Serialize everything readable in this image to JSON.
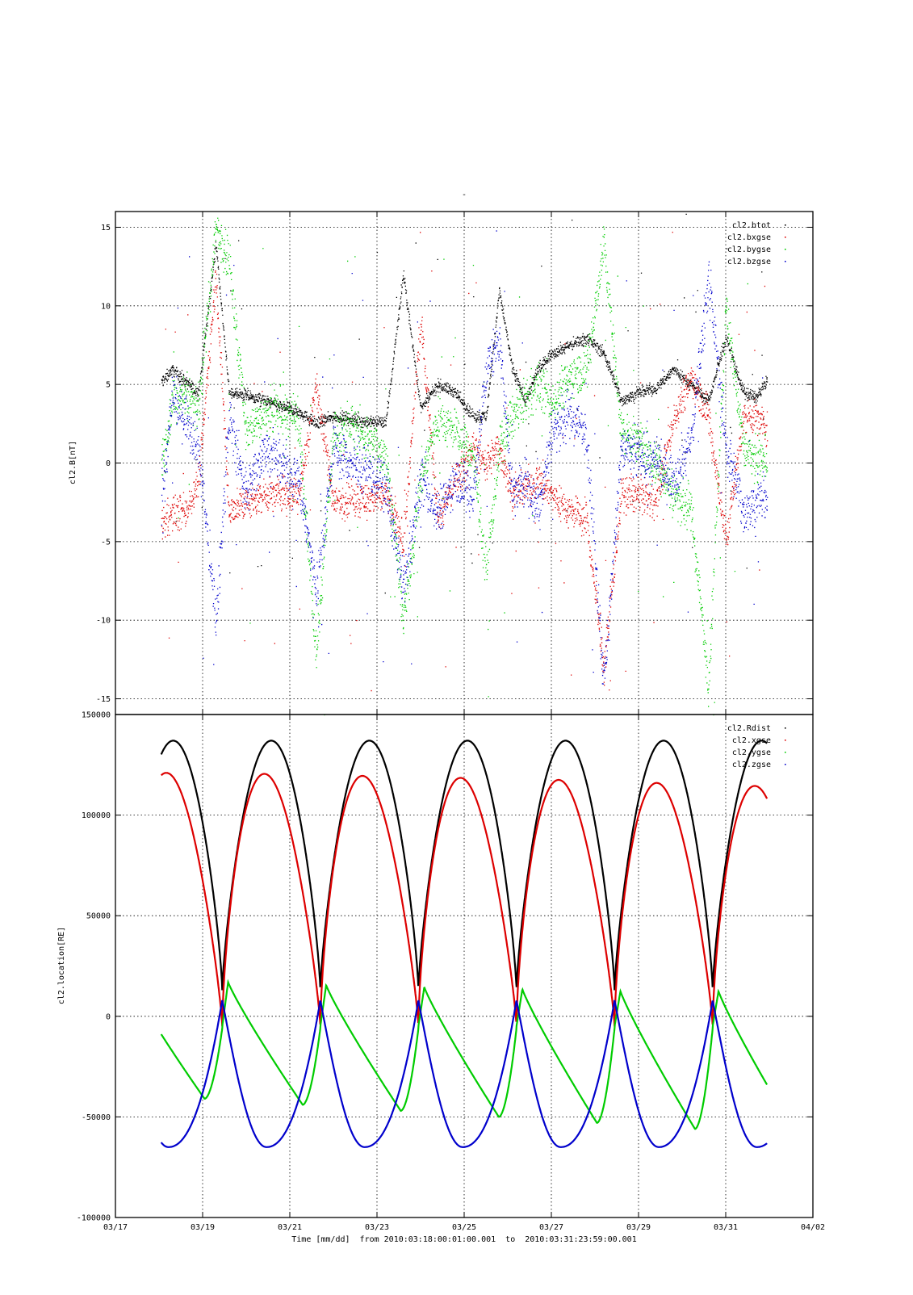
{
  "chart_data": [
    {
      "type": "scatter",
      "title": "-",
      "xlabel": "",
      "ylabel": "cl2.B[nT]",
      "ylim": [
        -16,
        16
      ],
      "yticks": [
        -15,
        -10,
        -5,
        0,
        5,
        10,
        15
      ],
      "xlim": [
        "03/17",
        "04/02"
      ],
      "grid": true,
      "legend_position": "top-right",
      "series": [
        {
          "name": "cl2.btot",
          "color": "#000000",
          "x_days": [
            18.0,
            18.3,
            18.6,
            18.9,
            19.3,
            19.6,
            20.0,
            20.4,
            20.8,
            21.2,
            21.6,
            22.0,
            22.4,
            22.8,
            23.2,
            23.6,
            24.0,
            24.4,
            24.8,
            25.2,
            25.5,
            25.8,
            26.1,
            26.4,
            26.7,
            27.0,
            27.4,
            27.8,
            28.2,
            28.6,
            29.0,
            29.4,
            29.8,
            30.2,
            30.6,
            31.0,
            31.4,
            31.7,
            32.0
          ],
          "values": [
            5.0,
            6.0,
            5.2,
            4.5,
            14.0,
            4.5,
            4.3,
            4.0,
            3.6,
            3.3,
            2.5,
            3.0,
            2.8,
            2.6,
            2.7,
            12.0,
            3.5,
            5.0,
            4.5,
            3.0,
            3.0,
            11.0,
            6.0,
            4.0,
            6.0,
            7.0,
            7.5,
            8.0,
            7.0,
            4.0,
            4.5,
            4.8,
            6.0,
            5.0,
            4.0,
            8.0,
            4.5,
            4.2,
            5.5
          ]
        },
        {
          "name": "cl2.bxgse",
          "color": "#dd0000",
          "x_days": [
            18.0,
            18.3,
            18.6,
            18.9,
            19.3,
            19.6,
            20.0,
            20.4,
            20.8,
            21.2,
            21.6,
            22.0,
            22.4,
            22.8,
            23.2,
            23.6,
            24.0,
            24.4,
            24.8,
            25.2,
            25.5,
            25.8,
            26.1,
            26.4,
            26.7,
            27.0,
            27.4,
            27.8,
            28.2,
            28.6,
            29.0,
            29.4,
            29.8,
            30.2,
            30.6,
            31.0,
            31.4,
            31.7,
            32.0
          ],
          "values": [
            -4.0,
            -3.2,
            -3.0,
            -1.0,
            12.0,
            -3.0,
            -2.5,
            -2.0,
            -1.8,
            -2.0,
            5.0,
            -2.5,
            -2.2,
            -2.3,
            -2.0,
            -5.0,
            9.0,
            -3.5,
            -1.0,
            1.0,
            0.0,
            1.0,
            -2.0,
            -1.5,
            -1.0,
            -2.0,
            -3.0,
            -3.5,
            -13.0,
            -2.0,
            -2.0,
            -2.5,
            3.0,
            5.5,
            3.0,
            -5.0,
            3.0,
            3.0,
            2.0
          ]
        },
        {
          "name": "cl2.bygse",
          "color": "#00cc00",
          "x_days": [
            18.0,
            18.3,
            18.6,
            18.9,
            19.3,
            19.6,
            20.0,
            20.4,
            20.8,
            21.2,
            21.6,
            22.0,
            22.4,
            22.8,
            23.2,
            23.6,
            24.0,
            24.4,
            24.8,
            25.2,
            25.5,
            25.8,
            26.1,
            26.4,
            26.7,
            27.0,
            27.4,
            27.8,
            28.2,
            28.6,
            29.0,
            29.4,
            29.8,
            30.2,
            30.6,
            31.0,
            31.4,
            31.7,
            32.0
          ],
          "values": [
            -1.0,
            4.0,
            4.5,
            3.5,
            15.0,
            13.0,
            2.0,
            3.0,
            3.5,
            2.5,
            -12.0,
            2.0,
            2.5,
            1.5,
            0.5,
            -10.0,
            -1.0,
            3.0,
            2.0,
            0.5,
            -7.0,
            1.0,
            3.0,
            4.0,
            5.0,
            4.0,
            5.5,
            6.0,
            14.0,
            2.0,
            1.5,
            0.0,
            -2.0,
            -3.0,
            -14.0,
            10.0,
            1.0,
            0.0,
            0.5
          ]
        },
        {
          "name": "cl2.bzgse",
          "color": "#0000cc",
          "x_days": [
            18.0,
            18.3,
            18.6,
            18.9,
            19.3,
            19.6,
            20.0,
            20.4,
            20.8,
            21.2,
            21.6,
            22.0,
            22.4,
            22.8,
            23.2,
            23.6,
            24.0,
            24.4,
            24.8,
            25.2,
            25.5,
            25.8,
            26.1,
            26.4,
            26.7,
            27.0,
            27.4,
            27.8,
            28.2,
            28.6,
            29.0,
            29.4,
            29.8,
            30.2,
            30.6,
            31.0,
            31.4,
            31.7,
            32.0
          ],
          "values": [
            -3.5,
            4.0,
            3.0,
            1.0,
            -10.0,
            3.0,
            -2.0,
            1.0,
            0.0,
            -1.0,
            -8.0,
            1.0,
            0.0,
            -0.5,
            -1.5,
            -8.0,
            -1.0,
            -3.0,
            -1.0,
            -2.0,
            6.0,
            8.0,
            -2.0,
            -1.0,
            -3.0,
            2.0,
            3.0,
            2.0,
            -14.0,
            1.0,
            0.5,
            0.0,
            -1.0,
            1.5,
            12.0,
            1.0,
            -3.0,
            -2.5,
            -2.0
          ]
        }
      ]
    },
    {
      "type": "line",
      "xlabel": "Time [mm/dd]  from 2010:03:18:00:01:00.001  to  2010:03:31:23:59:00.001",
      "ylabel": "cl2.location[RE]",
      "ylim": [
        -100000,
        150000
      ],
      "yticks": [
        -100000,
        -50000,
        0,
        50000,
        100000,
        150000
      ],
      "xlim": [
        "03/17",
        "04/02"
      ],
      "xticks": [
        "03/17",
        "03/19",
        "03/21",
        "03/23",
        "03/25",
        "03/27",
        "03/29",
        "03/31",
        "04/02"
      ],
      "grid": true,
      "legend_position": "top-right",
      "orbit_period_days": 2.25,
      "perigee_epochs_days": [
        19.45,
        21.7,
        23.95,
        26.2,
        28.45,
        30.7
      ],
      "series": [
        {
          "name": "cl2.Rdist",
          "color": "#000000",
          "apogee": 137000,
          "perigee": 13000
        },
        {
          "name": "cl2.xgse",
          "color": "#dd0000",
          "max_values": [
            121000,
            120500,
            119500,
            118500,
            117500,
            116000,
            114500
          ],
          "perigee": -5000
        },
        {
          "name": "cl2.ygse",
          "color": "#00cc00",
          "max_values": [
            18000,
            17000,
            15500,
            14500,
            13500,
            12500
          ],
          "min_values": [
            -41000,
            -44000,
            -47000,
            -50000,
            -53000,
            -56000
          ]
        },
        {
          "name": "cl2.zgse",
          "color": "#0000cc",
          "min_value": -65000,
          "perigee": 8000
        }
      ]
    }
  ]
}
